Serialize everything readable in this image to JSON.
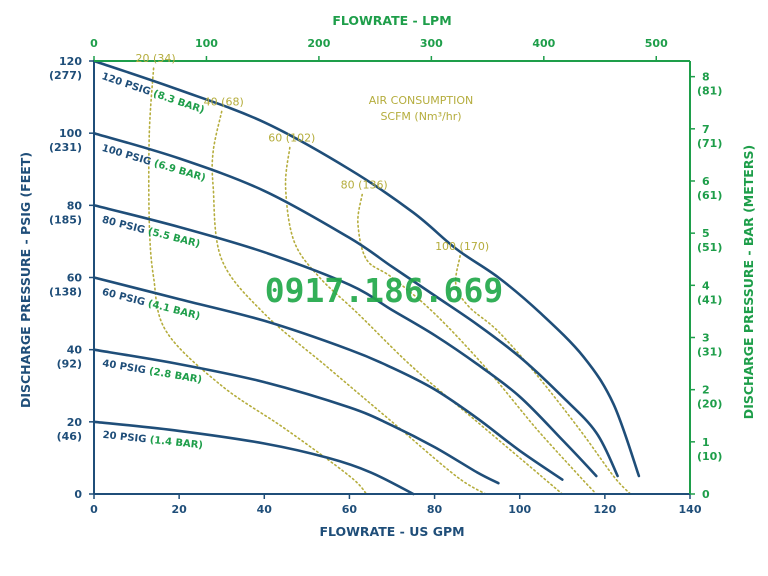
{
  "chart_data": {
    "type": "line",
    "watermark": "0917.186.669",
    "axes": {
      "bottom": {
        "label": "FLOWRATE - US GPM",
        "range": [
          0,
          140
        ],
        "ticks": [
          "0",
          "20",
          "40",
          "60",
          "80",
          "100",
          "120",
          "140"
        ]
      },
      "top": {
        "label": "FLOWRATE - LPM",
        "range": [
          0,
          530
        ],
        "ticks": [
          "0",
          "100",
          "200",
          "300",
          "400",
          "500"
        ]
      },
      "left": {
        "label": "DISCHARGE PRESSURE - PSIG (FEET)",
        "range": [
          0,
          120
        ],
        "ticks": [
          {
            "value": 0,
            "main": "0",
            "sub": ""
          },
          {
            "value": 20,
            "main": "20",
            "sub": "(46)"
          },
          {
            "value": 40,
            "main": "40",
            "sub": "(92)"
          },
          {
            "value": 60,
            "main": "60",
            "sub": "(138)"
          },
          {
            "value": 80,
            "main": "80",
            "sub": "(185)"
          },
          {
            "value": 100,
            "main": "100",
            "sub": "(231)"
          },
          {
            "value": 120,
            "main": "120",
            "sub": "(277)"
          }
        ]
      },
      "right": {
        "label": "DISCHARGE PRESSURE - BAR (METERS)",
        "range": [
          0,
          8.3
        ],
        "ticks": [
          {
            "value": 0,
            "main": "0",
            "sub": ""
          },
          {
            "value": 1,
            "main": "1",
            "sub": "(10)"
          },
          {
            "value": 2,
            "main": "2",
            "sub": "(20)"
          },
          {
            "value": 3,
            "main": "3",
            "sub": "(31)"
          },
          {
            "value": 4,
            "main": "4",
            "sub": "(41)"
          },
          {
            "value": 5,
            "main": "5",
            "sub": "(51)"
          },
          {
            "value": 6,
            "main": "6",
            "sub": "(61)"
          },
          {
            "value": 7,
            "main": "7",
            "sub": "(71)"
          },
          {
            "value": 8,
            "main": "8",
            "sub": "(81)"
          }
        ]
      }
    },
    "series": [
      {
        "name_main": "120 PSIG",
        "name_sub": "(8.3 BAR)",
        "points": [
          [
            0,
            120
          ],
          [
            20,
            112
          ],
          [
            40,
            103
          ],
          [
            60,
            90
          ],
          [
            75,
            78
          ],
          [
            85,
            68
          ],
          [
            95,
            60
          ],
          [
            105,
            50
          ],
          [
            115,
            38
          ],
          [
            122,
            25
          ],
          [
            128,
            5
          ]
        ]
      },
      {
        "name_main": "100 PSIG",
        "name_sub": "(6.9 BAR)",
        "points": [
          [
            0,
            100
          ],
          [
            20,
            93
          ],
          [
            40,
            84
          ],
          [
            60,
            71
          ],
          [
            70,
            63
          ],
          [
            80,
            55
          ],
          [
            90,
            47
          ],
          [
            100,
            38
          ],
          [
            110,
            27
          ],
          [
            118,
            17
          ],
          [
            123,
            5
          ]
        ]
      },
      {
        "name_main": "80 PSIG",
        "name_sub": "(5.5 BAR)",
        "points": [
          [
            0,
            80
          ],
          [
            20,
            74
          ],
          [
            40,
            67
          ],
          [
            60,
            58
          ],
          [
            70,
            51
          ],
          [
            80,
            44
          ],
          [
            90,
            36
          ],
          [
            100,
            27
          ],
          [
            110,
            15
          ],
          [
            118,
            5
          ]
        ]
      },
      {
        "name_main": "60 PSIG",
        "name_sub": "(4.1 BAR)",
        "points": [
          [
            0,
            60
          ],
          [
            20,
            54
          ],
          [
            40,
            48
          ],
          [
            60,
            40
          ],
          [
            70,
            35
          ],
          [
            80,
            29
          ],
          [
            90,
            21
          ],
          [
            100,
            12
          ],
          [
            110,
            4
          ]
        ]
      },
      {
        "name_main": "40 PSIG",
        "name_sub": "(2.8 BAR)",
        "points": [
          [
            0,
            40
          ],
          [
            20,
            36
          ],
          [
            40,
            31
          ],
          [
            60,
            24
          ],
          [
            70,
            19
          ],
          [
            80,
            13
          ],
          [
            90,
            6
          ],
          [
            95,
            3
          ]
        ]
      },
      {
        "name_main": "20 PSIG",
        "name_sub": "(1.4 BAR)",
        "points": [
          [
            0,
            20
          ],
          [
            20,
            17.5
          ],
          [
            40,
            14
          ],
          [
            55,
            10
          ],
          [
            65,
            6
          ],
          [
            75,
            0
          ]
        ]
      }
    ],
    "air_consumption": {
      "title_line1": "AIR CONSUMPTION",
      "title_line2": "SCFM (Nm³/hr)",
      "curves": [
        {
          "label": "20 (34)",
          "points": [
            [
              14,
              118
            ],
            [
              13,
              100
            ],
            [
              13,
              75
            ],
            [
              14,
              60
            ],
            [
              17,
              45
            ],
            [
              30,
              30
            ],
            [
              45,
              18
            ],
            [
              60,
              5
            ],
            [
              64,
              0
            ]
          ]
        },
        {
          "label": "40 (68)",
          "points": [
            [
              30,
              106
            ],
            [
              28,
              95
            ],
            [
              28,
              85
            ],
            [
              30,
              65
            ],
            [
              40,
              50
            ],
            [
              55,
              35
            ],
            [
              70,
              20
            ],
            [
              85,
              5
            ],
            [
              92,
              0
            ]
          ]
        },
        {
          "label": "60 (102)",
          "points": [
            [
              46,
              96
            ],
            [
              45,
              85
            ],
            [
              47,
              70
            ],
            [
              53,
              60
            ],
            [
              62,
              50
            ],
            [
              75,
              35
            ],
            [
              90,
              20
            ],
            [
              103,
              7
            ],
            [
              110,
              0
            ]
          ]
        },
        {
          "label": "80 (136)",
          "points": [
            [
              63,
              83
            ],
            [
              62,
              75
            ],
            [
              64,
              65
            ],
            [
              70,
              60
            ],
            [
              80,
              50
            ],
            [
              92,
              35
            ],
            [
              104,
              18
            ],
            [
              114,
              5
            ],
            [
              118,
              0
            ]
          ]
        },
        {
          "label": "100 (170)",
          "points": [
            [
              86,
              66
            ],
            [
              85,
              58
            ],
            [
              88,
              52
            ],
            [
              95,
              45
            ],
            [
              104,
              33
            ],
            [
              114,
              18
            ],
            [
              122,
              5
            ],
            [
              126,
              0
            ]
          ]
        }
      ]
    },
    "colors": {
      "axis_left_bottom": "#1f4e79",
      "axis_top_right": "#1e9e4a",
      "pressure_curves": "#1f4e79",
      "air_curves": "#b5ad3d",
      "watermark": "#22a84a"
    }
  }
}
